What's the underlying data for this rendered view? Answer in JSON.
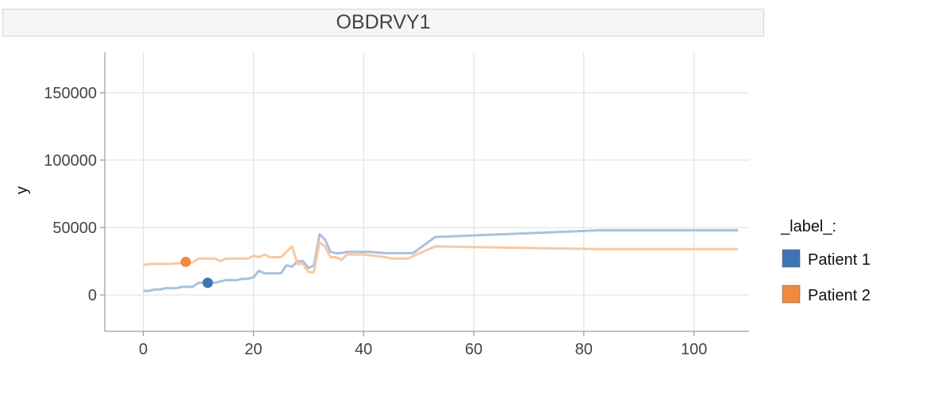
{
  "chart_data": {
    "type": "line",
    "title": "OBDRVY1",
    "xlabel": "",
    "ylabel": "y",
    "xlim": [
      -7,
      110
    ],
    "ylim": [
      -27000,
      180000
    ],
    "xticks": [
      0,
      20,
      40,
      60,
      80,
      100
    ],
    "yticks": [
      0,
      50000,
      100000,
      150000
    ],
    "grid": true,
    "legend": {
      "title": "_label_:",
      "placement": "right"
    },
    "series": [
      {
        "name": "Patient 1",
        "color": "#4073b3",
        "line_color": "#a9c1de",
        "marker": {
          "x": 11.7,
          "y": 9000
        },
        "x": [
          0,
          1,
          2,
          3,
          4,
          5,
          6,
          7,
          8,
          9,
          10,
          11,
          12,
          13,
          14,
          15,
          16,
          17,
          18,
          19,
          20,
          21,
          22,
          23,
          24,
          25,
          26,
          27,
          28,
          29,
          30,
          31,
          32,
          33,
          34,
          35,
          36,
          37,
          40,
          41,
          44,
          45,
          48,
          49,
          53,
          83,
          108
        ],
        "y": [
          3000,
          3000,
          4000,
          4000,
          5000,
          5000,
          5000,
          6000,
          6000,
          6000,
          9000,
          9000,
          9000,
          9000,
          10000,
          11000,
          11000,
          11000,
          12000,
          12000,
          13000,
          18000,
          16000,
          16000,
          16000,
          16000,
          22000,
          21000,
          25000,
          25000,
          20000,
          22000,
          45000,
          41000,
          32000,
          31000,
          31000,
          32000,
          32000,
          32000,
          31000,
          31000,
          31000,
          31000,
          43000,
          48000,
          48000
        ]
      },
      {
        "name": "Patient 2",
        "color": "#ef8a3e",
        "line_color": "#f7c9a2",
        "marker": {
          "x": 7.7,
          "y": 24500
        },
        "x": [
          0,
          1,
          5,
          8,
          9,
          10,
          12,
          13,
          14,
          15,
          16,
          18,
          19,
          20,
          21,
          22,
          23,
          24,
          25,
          26,
          27,
          28,
          29,
          30,
          31,
          32,
          33,
          34,
          35,
          36,
          37,
          38,
          40,
          44,
          45,
          48,
          53,
          83,
          108
        ],
        "y": [
          22000,
          23000,
          23000,
          24000,
          24000,
          27000,
          27000,
          27000,
          25000,
          27000,
          27000,
          27000,
          27000,
          29000,
          28000,
          30000,
          28000,
          28000,
          28000,
          32000,
          36000,
          23000,
          23000,
          17000,
          17000,
          39000,
          36000,
          28000,
          28000,
          26000,
          30000,
          30000,
          30000,
          28000,
          27000,
          27000,
          36000,
          34000,
          34000
        ]
      }
    ]
  }
}
